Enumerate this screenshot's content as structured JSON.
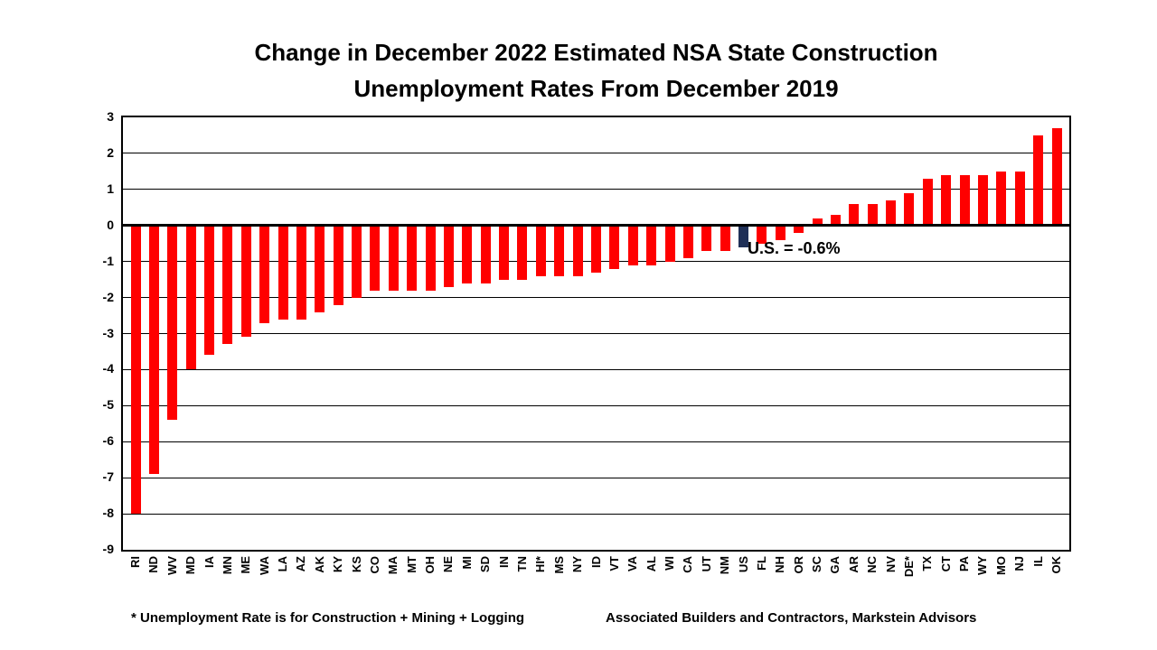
{
  "title": {
    "line1": "Change in December 2022 Estimated NSA State Construction",
    "line2": "Unemployment Rates From December 2019"
  },
  "annotation": "U.S. = -0.6%",
  "footnote_left": "* Unemployment Rate is for Construction + Mining + Logging",
  "footnote_right": "Associated Builders and Contractors, Markstein Advisors",
  "colors": {
    "bar": "#FF0000",
    "us_bar": "#1F3057",
    "grid": "#000000",
    "text": "#000000",
    "background": "#FFFFFF"
  },
  "chart_data": {
    "type": "bar",
    "title": "Change in December 2022 Estimated NSA State Construction Unemployment Rates From December 2019",
    "xlabel": "",
    "ylabel": "",
    "ylim": [
      -9,
      3
    ],
    "yticks": [
      3,
      2,
      1,
      0,
      -1,
      -2,
      -3,
      -4,
      -5,
      -6,
      -7,
      -8,
      -9
    ],
    "grid": true,
    "legend": "none",
    "highlight_category": "US",
    "annotation": "U.S. = -0.6%",
    "categories": [
      "RI",
      "ND",
      "WV",
      "MD",
      "IA",
      "MN",
      "ME",
      "WA",
      "LA",
      "AZ",
      "AK",
      "KY",
      "KS",
      "CO",
      "MA",
      "MT",
      "OH",
      "NE",
      "MI",
      "SD",
      "IN",
      "TN",
      "HI*",
      "MS",
      "NY",
      "ID",
      "VT",
      "VA",
      "AL",
      "WI",
      "CA",
      "UT",
      "NM",
      "US",
      "FL",
      "NH",
      "OR",
      "SC",
      "GA",
      "AR",
      "NC",
      "NV",
      "DE*",
      "TX",
      "CT",
      "PA",
      "WY",
      "MO",
      "NJ",
      "IL",
      "OK"
    ],
    "values": [
      -8.0,
      -6.9,
      -5.4,
      -4.0,
      -3.6,
      -3.3,
      -3.1,
      -2.7,
      -2.6,
      -2.6,
      -2.4,
      -2.2,
      -2.0,
      -1.8,
      -1.8,
      -1.8,
      -1.8,
      -1.7,
      -1.6,
      -1.6,
      -1.5,
      -1.5,
      -1.4,
      -1.4,
      -1.4,
      -1.3,
      -1.2,
      -1.1,
      -1.1,
      -1.0,
      -0.9,
      -0.7,
      -0.7,
      -0.6,
      -0.5,
      -0.4,
      -0.2,
      0.2,
      0.3,
      0.6,
      0.6,
      0.7,
      0.9,
      1.3,
      1.4,
      1.4,
      1.4,
      1.5,
      1.5,
      2.5,
      2.7
    ]
  }
}
